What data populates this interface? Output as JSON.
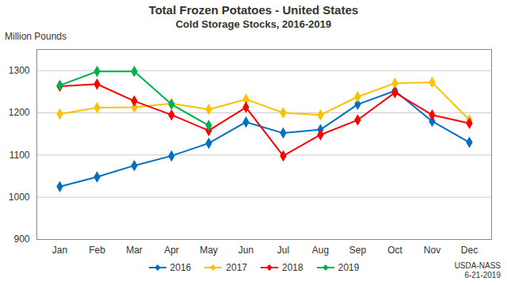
{
  "chart_data": {
    "type": "line",
    "title": "Total Frozen Potatoes - United States",
    "subtitle": "Cold Storage Stocks, 2016-2019",
    "y_label": "Million Pounds",
    "caption": "USDA-NASS\n6-21-2019",
    "categories": [
      "Jan",
      "Feb",
      "Mar",
      "Apr",
      "May",
      "Jun",
      "Jul",
      "Aug",
      "Sep",
      "Oct",
      "Nov",
      "Dec"
    ],
    "series": [
      {
        "name": "2016",
        "color": "#0070C0",
        "marker": "diamond",
        "values": [
          1025,
          1048,
          1075,
          1098,
          1128,
          1178,
          1152,
          1160,
          1220,
          1252,
          1180,
          1130
        ]
      },
      {
        "name": "2017",
        "color": "#FFC000",
        "marker": "diamond",
        "values": [
          1197,
          1212,
          1213,
          1222,
          1208,
          1232,
          1200,
          1195,
          1238,
          1270,
          1272,
          1183
        ]
      },
      {
        "name": "2018",
        "color": "#FF0000",
        "marker": "diamond",
        "values": [
          1263,
          1268,
          1228,
          1195,
          1158,
          1213,
          1098,
          1148,
          1183,
          1248,
          1195,
          1175
        ]
      },
      {
        "name": "2019",
        "color": "#00B050",
        "marker": "diamond",
        "values": [
          1265,
          1298,
          1298,
          1220,
          1170,
          null,
          null,
          null,
          null,
          null,
          null,
          null
        ]
      }
    ],
    "ylim": [
      900,
      1350
    ],
    "yticks": [
      900,
      1000,
      1100,
      1200,
      1300
    ],
    "grid": true,
    "legend": "bottom"
  }
}
